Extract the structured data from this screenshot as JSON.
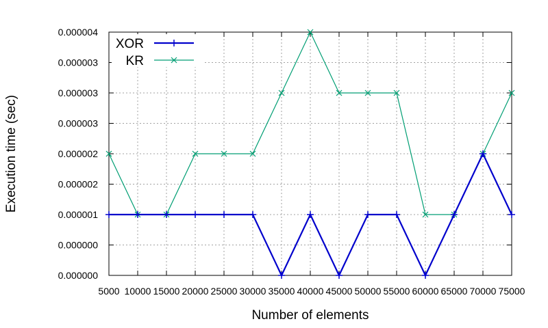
{
  "chart_data": {
    "type": "line",
    "title": "",
    "xlabel": "Number of elements",
    "ylabel": "Execution time (sec)",
    "x": [
      5000,
      10000,
      15000,
      20000,
      25000,
      30000,
      35000,
      40000,
      45000,
      50000,
      55000,
      60000,
      65000,
      70000,
      75000
    ],
    "xlim": [
      5000,
      75000
    ],
    "ylim": [
      0,
      4e-06
    ],
    "y_tick_values": [
      0,
      5e-07,
      1e-06,
      1.5e-06,
      2e-06,
      2.5e-06,
      3e-06,
      3.5e-06,
      4e-06
    ],
    "y_tick_labels": [
      "0.000000",
      "0.000000",
      "0.000001",
      "0.000002",
      "0.000002",
      "0.000003",
      "0.000003",
      "0.000003",
      "0.000004"
    ],
    "x_tick_labels": [
      "5000",
      "10000",
      "15000",
      "20000",
      "25000",
      "30000",
      "35000",
      "40000",
      "45000",
      "50000",
      "55000",
      "60000",
      "65000",
      "70000",
      "75000"
    ],
    "grid": true,
    "legend_position": "top-left",
    "series": [
      {
        "name": "XOR",
        "color": "#0000cc",
        "marker": "plus",
        "values": [
          1e-06,
          1e-06,
          1e-06,
          1e-06,
          1e-06,
          1e-06,
          0,
          1e-06,
          0,
          1e-06,
          1e-06,
          0,
          1e-06,
          2e-06,
          1e-06
        ]
      },
      {
        "name": "KR",
        "color": "#009e73",
        "marker": "cross",
        "values": [
          2e-06,
          1e-06,
          1e-06,
          2e-06,
          2e-06,
          2e-06,
          3e-06,
          4e-06,
          3e-06,
          3e-06,
          3e-06,
          1e-06,
          1e-06,
          2e-06,
          3e-06
        ]
      }
    ]
  }
}
